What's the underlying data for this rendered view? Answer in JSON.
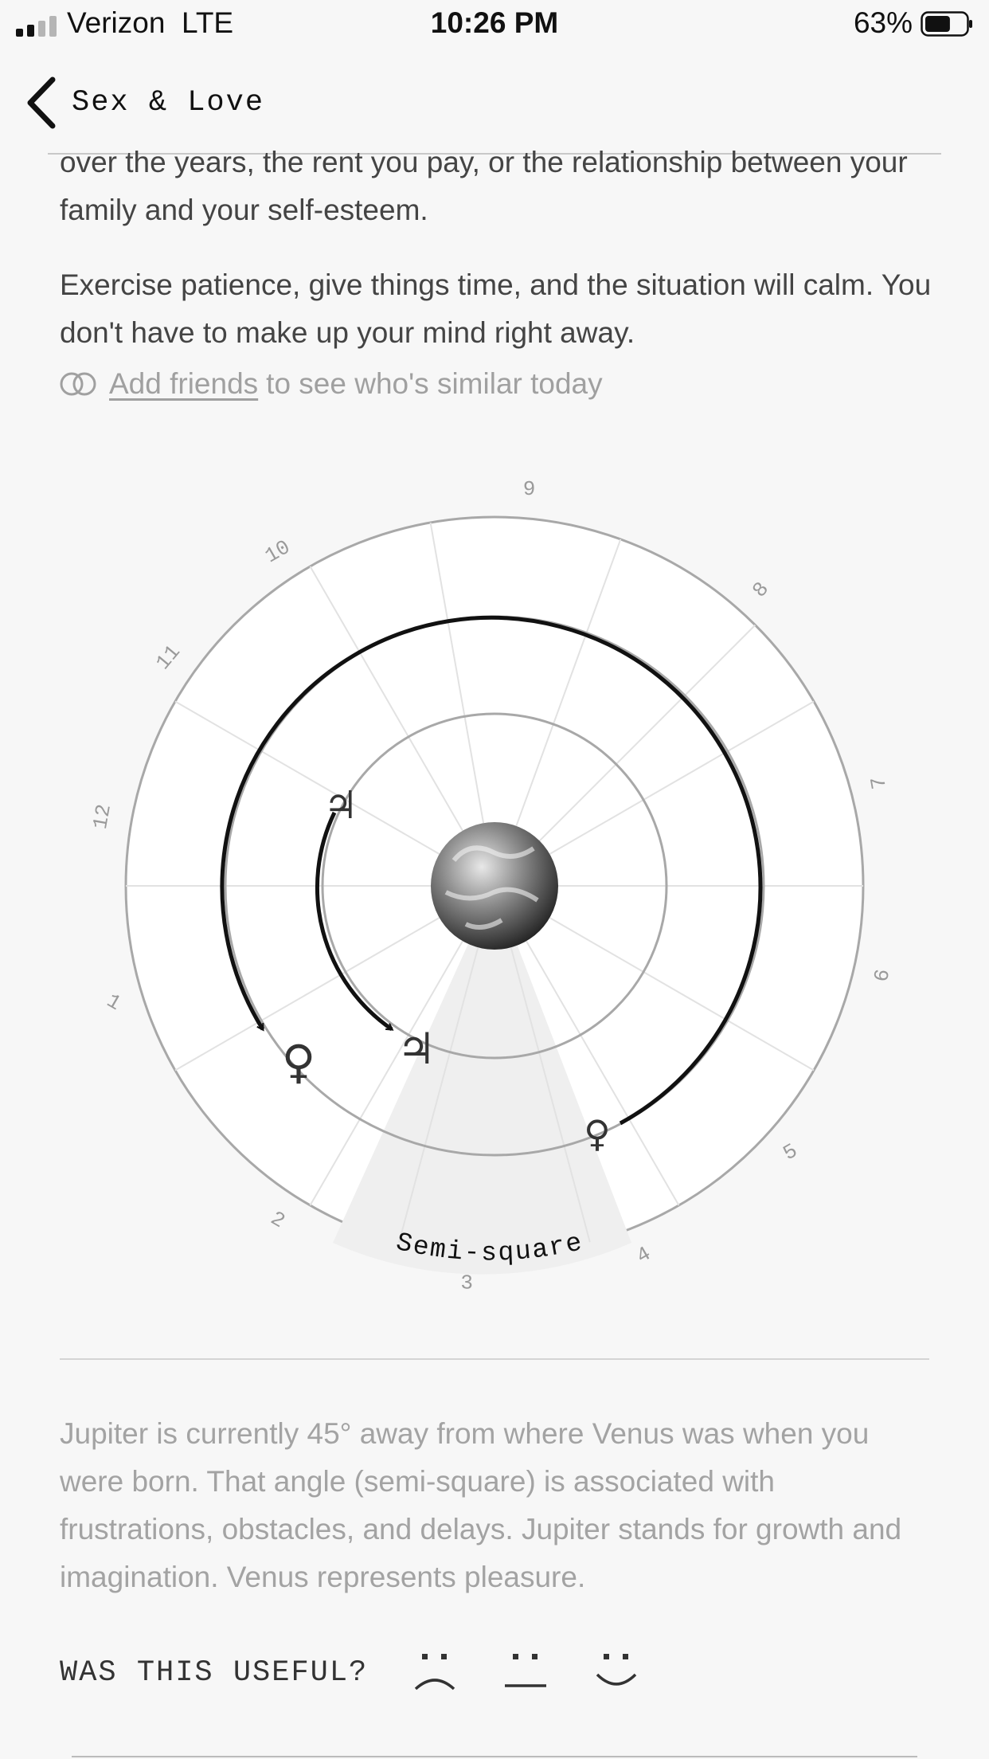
{
  "status_bar": {
    "carrier": "Verizon",
    "network": "LTE",
    "time": "10:26 PM",
    "battery_percent": "63%",
    "battery_level": 0.63
  },
  "nav": {
    "back_label": "Sex & Love"
  },
  "content": {
    "paragraph_1": "over the years, the rent you pay, or the relationship between your family and your self-esteem.",
    "paragraph_2": "Exercise patience, give things time, and the situation will calm. You don't have to make up your mind right away.",
    "friends_link": "Add friends",
    "friends_suffix": "to see who's similar today"
  },
  "chart": {
    "aspect_label": "Semi-square",
    "house_numbers": [
      "1",
      "2",
      "3",
      "4",
      "5",
      "6",
      "7",
      "8",
      "9",
      "10",
      "11",
      "12"
    ],
    "planets": {
      "transit_venus": "♀",
      "natal_venus": "♀",
      "transit_jupiter": "♃",
      "natal_jupiter": "♃"
    }
  },
  "explanation": "Jupiter is currently 45° away from where Venus was when you were born. That angle (semi-square) is associated with frustrations, obstacles, and delays. Jupiter stands for growth and imagination. Venus represents pleasure.",
  "feedback": {
    "label": "WAS THIS USEFUL?",
    "faces": [
      "sad-face-icon",
      "neutral-face-icon",
      "happy-face-icon"
    ]
  }
}
